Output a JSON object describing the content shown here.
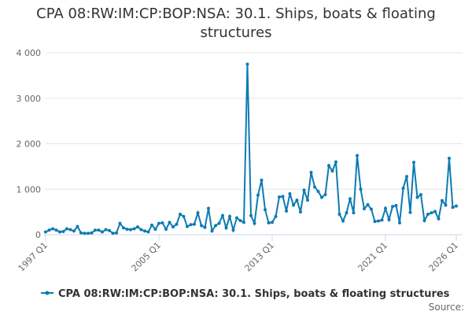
{
  "chart_data": {
    "type": "line",
    "title": "CPA 08:RW:IM:CP:BOP:NSA: 30.1. Ships, boats & floating structures",
    "categories": [
      "1997 Q1",
      null,
      null,
      null,
      null,
      null,
      null,
      null,
      null,
      null,
      null,
      null,
      null,
      null,
      null,
      null,
      null,
      null,
      null,
      null,
      null,
      null,
      null,
      null,
      null,
      null,
      null,
      null,
      null,
      null,
      null,
      null,
      "2005 Q1",
      null,
      null,
      null,
      null,
      null,
      null,
      null,
      null,
      null,
      null,
      null,
      null,
      null,
      null,
      null,
      null,
      null,
      null,
      null,
      null,
      null,
      null,
      null,
      null,
      null,
      null,
      null,
      null,
      null,
      null,
      null,
      "2013 Q1",
      null,
      null,
      null,
      null,
      null,
      null,
      null,
      null,
      null,
      null,
      null,
      null,
      null,
      null,
      null,
      null,
      null,
      null,
      null,
      null,
      null,
      null,
      null,
      null,
      null,
      null,
      null,
      null,
      null,
      null,
      null,
      "2021 Q1",
      null,
      null,
      null,
      null,
      null,
      null,
      null,
      null,
      null,
      null,
      null,
      null,
      null,
      null,
      null,
      null,
      null,
      null,
      null,
      "2026 Q1"
    ],
    "series": [
      {
        "name": "CPA 08:RW:IM:CP:BOP:NSA: 30.1. Ships, boats & floating structures",
        "color": "#0c7bb3",
        "values": [
          60,
          100,
          130,
          100,
          60,
          70,
          130,
          110,
          80,
          180,
          40,
          30,
          30,
          40,
          100,
          100,
          60,
          110,
          90,
          30,
          40,
          250,
          150,
          120,
          110,
          130,
          170,
          110,
          80,
          60,
          210,
          120,
          250,
          260,
          120,
          270,
          170,
          230,
          450,
          400,
          180,
          220,
          230,
          480,
          200,
          160,
          580,
          80,
          200,
          250,
          420,
          150,
          400,
          100,
          370,
          310,
          270,
          3750,
          420,
          250,
          870,
          1200,
          550,
          260,
          270,
          400,
          830,
          840,
          520,
          900,
          650,
          760,
          500,
          980,
          760,
          1370,
          1050,
          950,
          820,
          880,
          1520,
          1400,
          1600,
          450,
          300,
          480,
          790,
          480,
          1740,
          1000,
          570,
          660,
          560,
          290,
          300,
          320,
          580,
          330,
          620,
          640,
          260,
          1020,
          1280,
          490,
          1590,
          820,
          880,
          310,
          450,
          480,
          510,
          350,
          750,
          650,
          1680,
          600,
          630
        ]
      }
    ],
    "ylim": [
      0,
      4000
    ],
    "yticks": [
      0,
      {
        "value": 1000,
        "label": "1 000"
      },
      {
        "value": 2000,
        "label": "2 000"
      },
      {
        "value": 3000,
        "label": "3 000"
      },
      {
        "value": 4000,
        "label": "4 000"
      }
    ],
    "grid": true,
    "source": "Source:"
  }
}
